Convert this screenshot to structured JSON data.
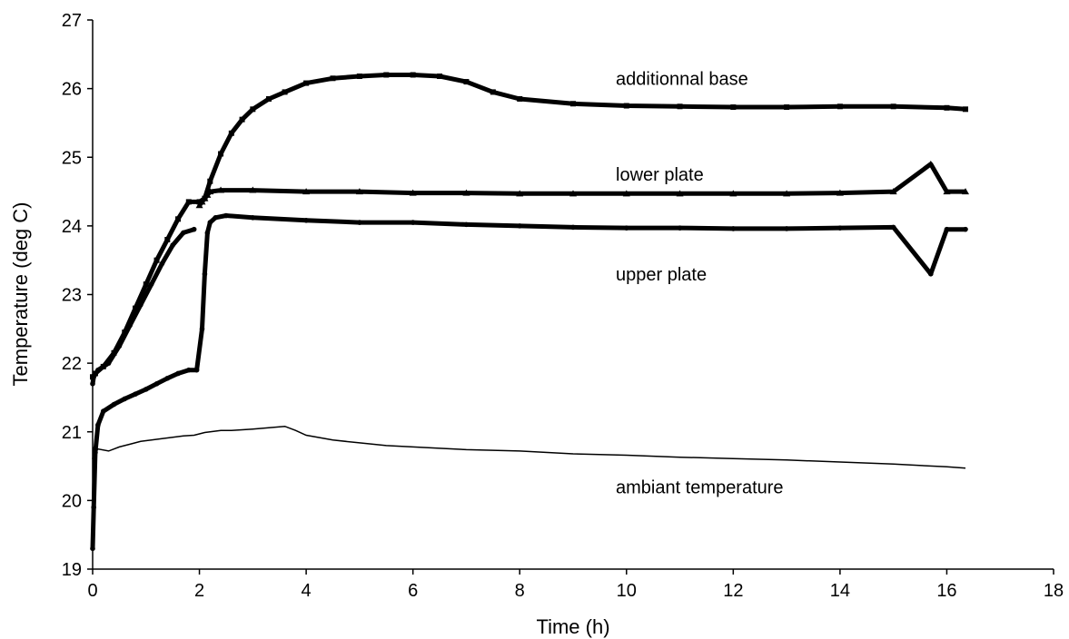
{
  "chart_data": {
    "type": "scatter",
    "title": "",
    "xlabel": "Time (h)",
    "ylabel": "Temperature (deg C)",
    "xlim": [
      0,
      18
    ],
    "ylim": [
      19,
      27
    ],
    "xticks": [
      0,
      2,
      4,
      6,
      8,
      10,
      12,
      14,
      16,
      18
    ],
    "yticks": [
      19,
      20,
      21,
      22,
      23,
      24,
      25,
      26,
      27
    ],
    "grid": false,
    "legend": "none",
    "colors": {
      "series": "#000000",
      "axis": "#000000",
      "background": "#ffffff"
    },
    "annotations": [
      {
        "text": "additionnal base",
        "x": 9.8,
        "y": 26.15
      },
      {
        "text": "lower plate",
        "x": 9.8,
        "y": 24.75
      },
      {
        "text": "upper plate",
        "x": 9.8,
        "y": 23.3
      },
      {
        "text": "ambiant temperature",
        "x": 9.8,
        "y": 20.2
      }
    ],
    "series": [
      {
        "marker": "square",
        "x": [
          0,
          0.05,
          0.2,
          0.4,
          0.6,
          0.8,
          1.0,
          1.2,
          1.4,
          1.6,
          1.8,
          2.0,
          2.1,
          2.2,
          2.4,
          2.6,
          2.8,
          3.0,
          3.3,
          3.6,
          4.0,
          4.5,
          5.0,
          5.5,
          6.0,
          6.5,
          7.0,
          7.5,
          8.0,
          9.0,
          10.0,
          11.0,
          12.0,
          13.0,
          14.0,
          15.0,
          16.0,
          16.35
        ],
        "y": [
          21.8,
          21.85,
          21.95,
          22.15,
          22.45,
          22.8,
          23.15,
          23.5,
          23.8,
          24.1,
          24.35,
          24.35,
          24.4,
          24.65,
          25.05,
          25.35,
          25.55,
          25.7,
          25.85,
          25.95,
          26.08,
          26.15,
          26.18,
          26.2,
          26.2,
          26.18,
          26.1,
          25.95,
          25.85,
          25.78,
          25.75,
          25.74,
          25.73,
          25.73,
          25.74,
          25.74,
          25.72,
          25.7
        ]
      },
      {
        "marker": "triangle",
        "x": [
          2.0,
          2.05,
          2.1,
          2.15,
          2.2,
          2.4,
          3.0,
          4.0,
          5.0,
          6.0,
          7.0,
          8.0,
          9.0,
          10.0,
          11.0,
          12.0,
          13.0,
          14.0,
          15.0,
          15.7,
          16.0,
          16.35
        ],
        "y": [
          24.3,
          24.35,
          24.4,
          24.45,
          24.5,
          24.52,
          24.52,
          24.5,
          24.5,
          24.48,
          24.48,
          24.47,
          24.47,
          24.47,
          24.47,
          24.47,
          24.47,
          24.48,
          24.5,
          24.9,
          24.5,
          24.5
        ]
      },
      {
        "marker": "circle",
        "x": [
          0,
          0.02,
          0.05,
          0.1,
          0.2,
          0.4,
          0.6,
          0.8,
          1.0,
          1.2,
          1.4,
          1.6,
          1.8,
          1.95,
          2.05,
          2.1,
          2.15,
          2.2,
          2.3,
          2.5,
          3.0,
          4.0,
          5.0,
          6.0,
          7.0,
          8.0,
          9.0,
          10.0,
          11.0,
          12.0,
          13.0,
          14.0,
          15.0,
          15.7,
          16.0,
          16.35
        ],
        "y": [
          19.3,
          19.9,
          20.7,
          21.1,
          21.3,
          21.4,
          21.48,
          21.55,
          21.62,
          21.7,
          21.78,
          21.85,
          21.9,
          21.9,
          22.5,
          23.3,
          23.9,
          24.05,
          24.12,
          24.15,
          24.12,
          24.08,
          24.05,
          24.05,
          24.02,
          24.0,
          23.98,
          23.97,
          23.97,
          23.96,
          23.96,
          23.97,
          23.98,
          23.3,
          23.95,
          23.95
        ]
      },
      {
        "marker": "circle",
        "x": [
          0,
          0.02,
          0.1,
          0.3,
          0.5,
          0.7,
          0.9,
          1.1,
          1.3,
          1.5,
          1.7,
          1.9
        ],
        "y": [
          21.7,
          21.8,
          21.9,
          22.0,
          22.25,
          22.55,
          22.85,
          23.15,
          23.45,
          23.72,
          23.9,
          23.95
        ]
      },
      {
        "marker": "line",
        "x": [
          0,
          0.02,
          0.05,
          0.1,
          0.3,
          0.5,
          0.7,
          0.9,
          1.1,
          1.3,
          1.5,
          1.7,
          1.9,
          2.0,
          2.1,
          2.2,
          2.4,
          2.6,
          2.8,
          3.0,
          3.3,
          3.6,
          3.8,
          4.0,
          4.5,
          5.0,
          5.5,
          6.0,
          6.5,
          7.0,
          8.0,
          9.0,
          10.0,
          11.0,
          12.0,
          13.0,
          14.0,
          15.0,
          16.0,
          16.35
        ],
        "y": [
          20.6,
          20.75,
          20.7,
          20.75,
          20.72,
          20.78,
          20.82,
          20.86,
          20.88,
          20.9,
          20.92,
          20.94,
          20.95,
          20.97,
          20.99,
          21.0,
          21.02,
          21.02,
          21.03,
          21.04,
          21.06,
          21.08,
          21.02,
          20.95,
          20.88,
          20.84,
          20.8,
          20.78,
          20.76,
          20.74,
          20.72,
          20.68,
          20.66,
          20.63,
          20.61,
          20.59,
          20.56,
          20.53,
          20.49,
          20.47
        ]
      }
    ]
  }
}
